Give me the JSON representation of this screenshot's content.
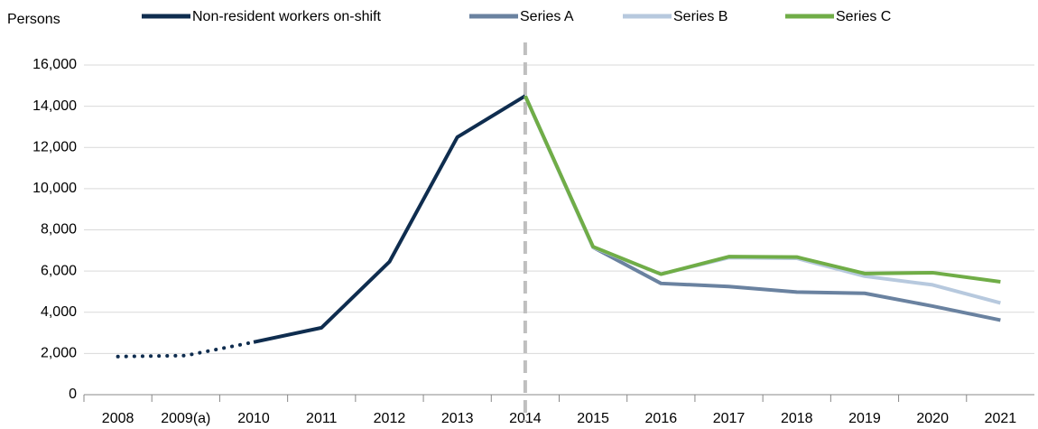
{
  "chart_data": {
    "type": "line",
    "y_axis_label": "Persons",
    "categories": [
      "2008",
      "2009(a)",
      "2010",
      "2011",
      "2012",
      "2013",
      "2014",
      "2015",
      "2016",
      "2017",
      "2018",
      "2019",
      "2020",
      "2021"
    ],
    "series": [
      {
        "name": "Non-resident workers on-shift",
        "color": "#0f2d4f",
        "dotted_segments": [
          0,
          1
        ],
        "values": [
          1850,
          1900,
          2550,
          3250,
          6450,
          12500,
          14500,
          null,
          null,
          null,
          null,
          null,
          null,
          null
        ]
      },
      {
        "name": "Series A",
        "color": "#6a82a0",
        "values": [
          null,
          null,
          null,
          null,
          null,
          null,
          14500,
          7150,
          5400,
          5250,
          4980,
          4920,
          4300,
          3620
        ]
      },
      {
        "name": "Series B",
        "color": "#b7c9de",
        "values": [
          null,
          null,
          null,
          null,
          null,
          null,
          14500,
          7150,
          5850,
          6650,
          6620,
          5750,
          5330,
          4450
        ]
      },
      {
        "name": "Series C",
        "color": "#70ad47",
        "values": [
          null,
          null,
          null,
          null,
          null,
          null,
          14500,
          7180,
          5850,
          6700,
          6680,
          5880,
          5920,
          5480
        ]
      }
    ],
    "reference_line_x": "2014",
    "ylim": [
      0,
      16000
    ],
    "yticks": [
      0,
      {
        "value": 2000,
        "label": "2,000"
      },
      {
        "value": 4000,
        "label": "4,000"
      },
      {
        "value": 6000,
        "label": "6,000"
      },
      {
        "value": 8000,
        "label": "8,000"
      },
      {
        "value": 10000,
        "label": "10,000"
      },
      {
        "value": 12000,
        "label": "12,000"
      },
      {
        "value": 14000,
        "label": "14,000"
      },
      {
        "value": 16000,
        "label": "16,000"
      }
    ],
    "grid": true,
    "legend": "top"
  }
}
